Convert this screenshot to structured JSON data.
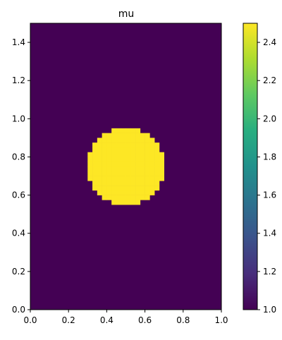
{
  "chart_data": {
    "type": "heatmap",
    "title": "mu",
    "xlabel": "",
    "ylabel": "",
    "xlim": [
      0.0,
      1.0
    ],
    "ylim": [
      0.0,
      1.5
    ],
    "x_ticks": [
      0.0,
      0.2,
      0.4,
      0.6,
      0.8,
      1.0
    ],
    "x_tick_labels": [
      "0.0",
      "0.2",
      "0.4",
      "0.6",
      "0.8",
      "1.0"
    ],
    "y_ticks": [
      0.0,
      0.2,
      0.4,
      0.6,
      0.8,
      1.0,
      1.2,
      1.4
    ],
    "y_tick_labels": [
      "0.0",
      "0.2",
      "0.4",
      "0.6",
      "0.8",
      "1.0",
      "1.2",
      "1.4"
    ],
    "grid": false,
    "colormap": "viridis",
    "background_value": 1.0,
    "inclusion": {
      "shape": "circle",
      "value": 2.5,
      "center": [
        0.5,
        0.75
      ],
      "radius": 0.2,
      "grid_resolution": [
        40,
        60
      ]
    },
    "colorbar": {
      "min": 1.0,
      "max": 2.5,
      "ticks": [
        1.0,
        1.2,
        1.4,
        1.6,
        1.8,
        2.0,
        2.2,
        2.4
      ],
      "tick_labels": [
        "1.0",
        "1.2",
        "1.4",
        "1.6",
        "1.8",
        "2.0",
        "2.2",
        "2.4"
      ]
    }
  }
}
